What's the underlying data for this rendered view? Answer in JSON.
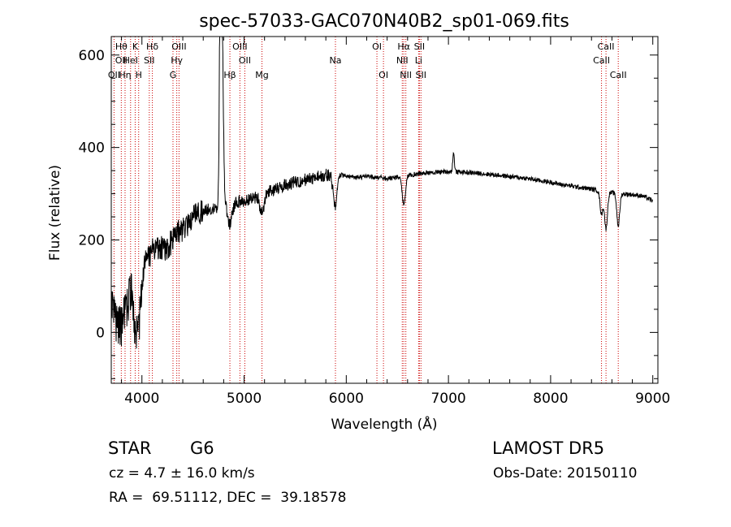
{
  "chart_data": {
    "type": "line",
    "title": "spec-57033-GAC070N40B2_sp01-069.fits",
    "xlabel": "Wavelength (Å)",
    "ylabel": "Flux (relative)",
    "xlim": [
      3700,
      9050
    ],
    "ylim": [
      -110,
      640
    ],
    "x_ticks": [
      4000,
      5000,
      6000,
      7000,
      8000,
      9000
    ],
    "y_ticks": [
      0,
      200,
      400,
      600
    ],
    "grid": false,
    "line_color": "#000000",
    "marker_color": "#cc0000",
    "spectrum_anchors": [
      [
        3700,
        60
      ],
      [
        3720,
        40
      ],
      [
        3750,
        20
      ],
      [
        3800,
        15
      ],
      [
        3850,
        50
      ],
      [
        3900,
        100
      ],
      [
        3950,
        110
      ],
      [
        4000,
        130
      ],
      [
        4050,
        160
      ],
      [
        4100,
        175
      ],
      [
        4150,
        185
      ],
      [
        4200,
        180
      ],
      [
        4250,
        185
      ],
      [
        4300,
        200
      ],
      [
        4350,
        215
      ],
      [
        4400,
        225
      ],
      [
        4450,
        235
      ],
      [
        4500,
        248
      ],
      [
        4550,
        258
      ],
      [
        4600,
        262
      ],
      [
        4700,
        268
      ],
      [
        4800,
        272
      ],
      [
        4900,
        278
      ],
      [
        5000,
        285
      ],
      [
        5100,
        292
      ],
      [
        5200,
        300
      ],
      [
        5300,
        310
      ],
      [
        5400,
        318
      ],
      [
        5500,
        325
      ],
      [
        5600,
        330
      ],
      [
        5700,
        335
      ],
      [
        5800,
        340
      ],
      [
        5900,
        342
      ],
      [
        6000,
        338
      ],
      [
        6100,
        335
      ],
      [
        6200,
        337
      ],
      [
        6300,
        336
      ],
      [
        6400,
        333
      ],
      [
        6500,
        335
      ],
      [
        6600,
        340
      ],
      [
        6700,
        343
      ],
      [
        6800,
        345
      ],
      [
        6900,
        347
      ],
      [
        7000,
        348
      ],
      [
        7100,
        347
      ],
      [
        7200,
        346
      ],
      [
        7300,
        344
      ],
      [
        7400,
        342
      ],
      [
        7500,
        340
      ],
      [
        7600,
        337
      ],
      [
        7700,
        335
      ],
      [
        7800,
        332
      ],
      [
        7900,
        328
      ],
      [
        8000,
        325
      ],
      [
        8100,
        320
      ],
      [
        8200,
        317
      ],
      [
        8300,
        313
      ],
      [
        8400,
        310
      ],
      [
        8500,
        306
      ],
      [
        8600,
        302
      ],
      [
        8700,
        300
      ],
      [
        8800,
        298
      ],
      [
        8900,
        295
      ],
      [
        8950,
        290
      ],
      [
        9000,
        285
      ]
    ],
    "spectrum_features": [
      [
        4780,
        460,
        14
      ],
      [
        4765,
        320,
        6
      ],
      [
        4861,
        -40,
        20
      ],
      [
        5890,
        -70,
        18
      ],
      [
        6563,
        -60,
        16
      ],
      [
        8498,
        -50,
        14
      ],
      [
        8542,
        -80,
        14
      ],
      [
        8662,
        -70,
        14
      ],
      [
        7050,
        40,
        8
      ],
      [
        5175,
        -40,
        20
      ],
      [
        3934,
        -80,
        20
      ],
      [
        3968,
        -90,
        20
      ]
    ],
    "lines": [
      {
        "wavelength": 3727,
        "labels": [
          "OII"
        ],
        "row": 2
      },
      {
        "wavelength": 3798,
        "labels": [
          "Hθ",
          "OII"
        ],
        "row": 0
      },
      {
        "wavelength": 3835,
        "labels": [
          "Hη"
        ],
        "row": 2
      },
      {
        "wavelength": 3889,
        "labels": [
          "HeI"
        ],
        "row": 1
      },
      {
        "wavelength": 3934,
        "labels": [
          "K"
        ],
        "row": 0
      },
      {
        "wavelength": 3968,
        "labels": [
          "H"
        ],
        "row": 2
      },
      {
        "wavelength": 4072,
        "labels": [
          "SII"
        ],
        "row": 1
      },
      {
        "wavelength": 4102,
        "labels": [
          "Hδ"
        ],
        "row": 0
      },
      {
        "wavelength": 4304,
        "labels": [
          "G"
        ],
        "row": 2
      },
      {
        "wavelength": 4341,
        "labels": [
          "Hγ"
        ],
        "row": 1
      },
      {
        "wavelength": 4363,
        "labels": [
          "OIII"
        ],
        "row": 0
      },
      {
        "wavelength": 4861,
        "labels": [
          "Hβ"
        ],
        "row": 2
      },
      {
        "wavelength": 4959,
        "labels": [
          "OIII"
        ],
        "row": 0
      },
      {
        "wavelength": 5007,
        "labels": [
          "OII"
        ],
        "row": 1
      },
      {
        "wavelength": 5175,
        "labels": [
          "Mg"
        ],
        "row": 2
      },
      {
        "wavelength": 5894,
        "labels": [
          "Na"
        ],
        "row": 1
      },
      {
        "wavelength": 6300,
        "labels": [
          "OI"
        ],
        "row": 0
      },
      {
        "wavelength": 6364,
        "labels": [
          "OI"
        ],
        "row": 2
      },
      {
        "wavelength": 6548,
        "labels": [
          "NII"
        ],
        "row": 1
      },
      {
        "wavelength": 6563,
        "labels": [
          "Hα"
        ],
        "row": 0
      },
      {
        "wavelength": 6583,
        "labels": [
          "NII"
        ],
        "row": 2
      },
      {
        "wavelength": 6708,
        "labels": [
          "Li"
        ],
        "row": 1
      },
      {
        "wavelength": 6716,
        "labels": [
          "SII"
        ],
        "row": 0
      },
      {
        "wavelength": 6731,
        "labels": [
          "SII"
        ],
        "row": 2
      },
      {
        "wavelength": 8498,
        "labels": [
          "CaII"
        ],
        "row": 1
      },
      {
        "wavelength": 8542,
        "labels": [
          "CaII"
        ],
        "row": 0
      },
      {
        "wavelength": 8662,
        "labels": [
          "CaII"
        ],
        "row": 2
      }
    ]
  },
  "info": {
    "object_class": "STAR",
    "subclass": "G6",
    "survey": "LAMOST DR5",
    "redshift": "cz = 4.7 ± 16.0 km/s",
    "obs_date": "Obs-Date: 20150110",
    "coords": "RA =  69.51112, DEC =  39.18578"
  }
}
